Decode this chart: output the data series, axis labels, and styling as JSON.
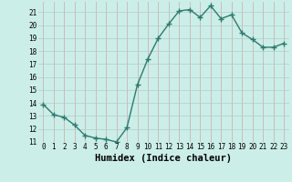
{
  "x": [
    0,
    1,
    2,
    3,
    4,
    5,
    6,
    7,
    8,
    9,
    10,
    11,
    12,
    13,
    14,
    15,
    16,
    17,
    18,
    19,
    20,
    21,
    22,
    23
  ],
  "y": [
    13.9,
    13.1,
    12.9,
    12.3,
    11.5,
    11.3,
    11.2,
    11.0,
    12.1,
    15.4,
    17.4,
    19.0,
    20.1,
    21.1,
    21.2,
    20.6,
    21.5,
    20.5,
    20.8,
    19.4,
    18.9,
    18.3,
    18.3,
    18.6
  ],
  "line_color": "#2d7a6e",
  "marker": "+",
  "marker_size": 4,
  "bg_color": "#cceee8",
  "grid_color": "#c0c0b0",
  "xlabel": "Humidex (Indice chaleur)",
  "ylim": [
    11,
    21.8
  ],
  "xlim": [
    -0.5,
    23.5
  ],
  "yticks": [
    11,
    12,
    13,
    14,
    15,
    16,
    17,
    18,
    19,
    20,
    21
  ],
  "xticks": [
    0,
    1,
    2,
    3,
    4,
    5,
    6,
    7,
    8,
    9,
    10,
    11,
    12,
    13,
    14,
    15,
    16,
    17,
    18,
    19,
    20,
    21,
    22,
    23
  ],
  "tick_fontsize": 5.5,
  "label_fontsize": 7.5,
  "line_width": 1.0,
  "marker_color": "#2d7a6e"
}
